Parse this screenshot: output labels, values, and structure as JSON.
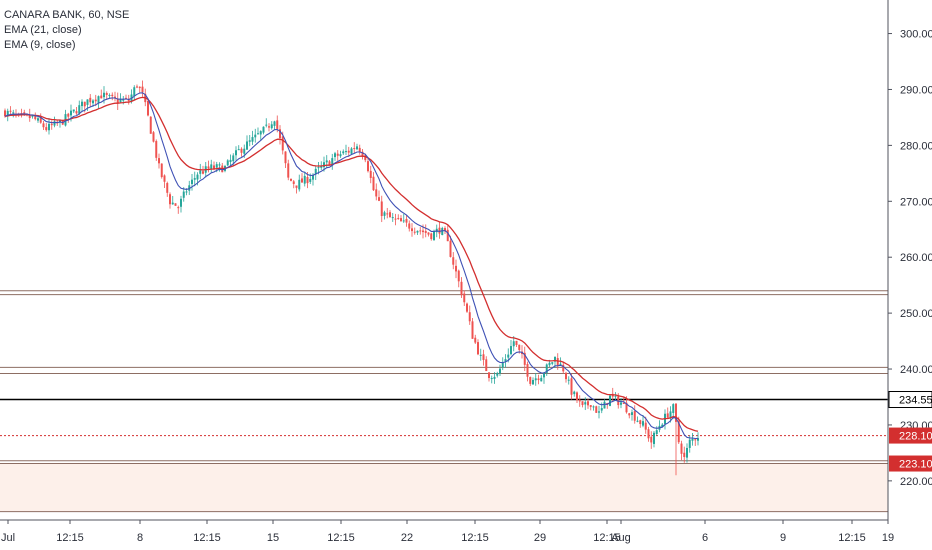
{
  "legend": {
    "symbol": "CANARA BANK, 60, NSE",
    "ema21": "EMA (21, close)",
    "ema9": "EMA (9, close)"
  },
  "colors": {
    "up": "#26a69a",
    "down": "#ef5350",
    "ema21": "#d32f2f",
    "ema9": "#3f51b5",
    "hline": "#8d6e63",
    "priceLine": "#d32f2f",
    "markLine": "#000000",
    "band": "#fdf0ea"
  },
  "chart_data": {
    "type": "candlestick",
    "title": "CANARA BANK, 60, NSE",
    "ylim": [
      213,
      306
    ],
    "y_ticks": [
      220,
      230,
      240,
      250,
      260,
      270,
      280,
      290,
      300
    ],
    "x_tick_labels": [
      "Jul",
      "12:15",
      "8",
      "12:15",
      "15",
      "12:15",
      "22",
      "12:15",
      "29",
      "12:15",
      "Aug",
      "6",
      "9",
      "12:15",
      "19"
    ],
    "grid": false,
    "horizontal_levels": [
      254,
      253.3,
      240.3,
      239.2,
      234.55,
      223.6,
      223.1,
      214.5
    ],
    "price_labels": [
      {
        "text": "234.55",
        "value": 234.55,
        "style": "outline"
      },
      {
        "text": "228.10",
        "value": 228.1,
        "style": "red"
      },
      {
        "text": "223.10",
        "value": 223.1,
        "style": "red"
      }
    ],
    "last_price": 228.1,
    "shaded_zone": [
      214.5,
      223.1
    ],
    "close_anchors": [
      [
        0,
        286
      ],
      [
        5,
        285
      ],
      [
        10,
        285
      ],
      [
        15,
        283
      ],
      [
        20,
        284
      ],
      [
        25,
        286
      ],
      [
        30,
        288
      ],
      [
        35,
        289
      ],
      [
        40,
        288
      ],
      [
        45,
        288
      ],
      [
        48,
        291
      ],
      [
        50,
        289
      ],
      [
        52,
        285
      ],
      [
        56,
        276
      ],
      [
        60,
        270
      ],
      [
        63,
        269
      ],
      [
        66,
        272
      ],
      [
        70,
        275
      ],
      [
        75,
        276
      ],
      [
        80,
        276
      ],
      [
        85,
        279
      ],
      [
        90,
        281
      ],
      [
        95,
        283
      ],
      [
        98,
        285
      ],
      [
        100,
        281
      ],
      [
        103,
        274
      ],
      [
        106,
        273
      ],
      [
        110,
        274
      ],
      [
        115,
        276
      ],
      [
        120,
        278
      ],
      [
        125,
        279
      ],
      [
        128,
        280
      ],
      [
        131,
        278
      ],
      [
        134,
        272
      ],
      [
        137,
        268
      ],
      [
        140,
        267
      ],
      [
        145,
        266
      ],
      [
        150,
        265
      ],
      [
        155,
        264
      ],
      [
        158,
        265
      ],
      [
        160,
        264
      ],
      [
        163,
        259
      ],
      [
        167,
        252
      ],
      [
        170,
        246
      ],
      [
        173,
        242
      ],
      [
        176,
        239
      ],
      [
        179,
        239
      ],
      [
        182,
        242
      ],
      [
        185,
        245
      ],
      [
        188,
        242
      ],
      [
        191,
        238
      ],
      [
        195,
        239
      ],
      [
        200,
        242
      ],
      [
        203,
        240
      ],
      [
        206,
        236
      ],
      [
        210,
        233
      ],
      [
        213,
        234
      ],
      [
        216,
        232
      ],
      [
        220,
        235
      ],
      [
        224,
        234
      ],
      [
        228,
        232
      ],
      [
        232,
        230
      ],
      [
        235,
        227
      ],
      [
        238,
        230
      ],
      [
        241,
        232
      ],
      [
        243,
        233
      ],
      [
        245,
        227
      ],
      [
        247,
        224
      ],
      [
        249,
        227
      ],
      [
        252,
        228.1
      ]
    ]
  }
}
